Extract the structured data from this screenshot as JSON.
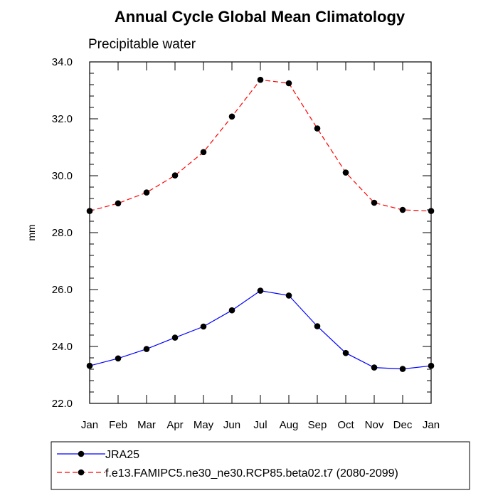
{
  "chart_data": {
    "type": "line",
    "title": "Annual Cycle Global Mean Climatology",
    "subtitle": "Precipitable water",
    "xlabel": "",
    "ylabel": "mm",
    "categories": [
      "Jan",
      "Feb",
      "Mar",
      "Apr",
      "May",
      "Jun",
      "Jul",
      "Aug",
      "Sep",
      "Oct",
      "Nov",
      "Dec",
      "Jan"
    ],
    "ylim": [
      22.0,
      34.0
    ],
    "yticks": [
      "22.0",
      "24.0",
      "26.0",
      "28.0",
      "30.0",
      "32.0",
      "34.0"
    ],
    "grid": false,
    "legend_position": "bottom",
    "series": [
      {
        "name": "JRA25",
        "color": "#0000ff",
        "line_style": "solid",
        "values": [
          23.32,
          23.58,
          23.91,
          24.31,
          24.7,
          25.27,
          25.96,
          25.79,
          24.71,
          23.77,
          23.26,
          23.21,
          23.32
        ]
      },
      {
        "name": "f.e13.FAMIPC5.ne30_ne30.RCP85.beta02.t7 (2080-2099)",
        "color": "#ff0000",
        "line_style": "dashed",
        "values": [
          28.76,
          29.03,
          29.41,
          30.01,
          30.83,
          32.08,
          33.37,
          33.25,
          31.66,
          30.11,
          29.05,
          28.8,
          28.76
        ]
      }
    ]
  }
}
